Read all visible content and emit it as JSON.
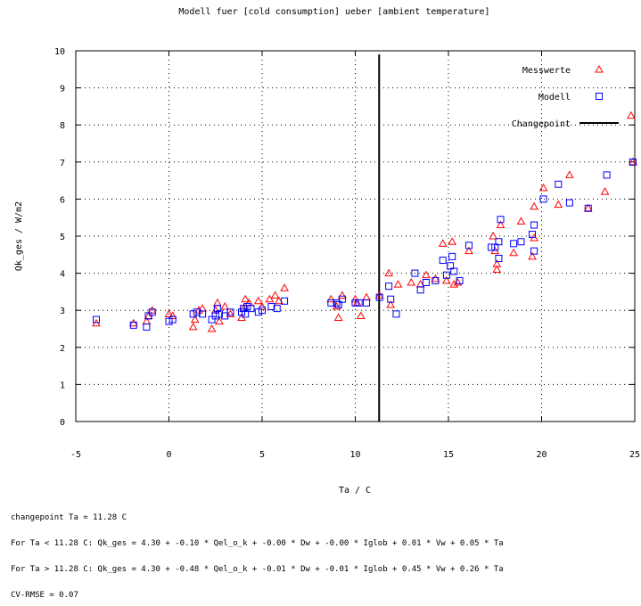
{
  "chart_data": {
    "type": "scatter",
    "title": "Modell fuer [cold consumption] ueber [ambient temperature]",
    "xlabel": "Ta / C",
    "ylabel": "Qk_ges / W/m2",
    "xlim": [
      -5,
      25
    ],
    "ylim": [
      0,
      10
    ],
    "x_ticks": [
      "-5",
      "0",
      "5",
      "10",
      "15",
      "20",
      "25"
    ],
    "y_ticks": [
      "0",
      "1",
      "2",
      "3",
      "4",
      "5",
      "6",
      "7",
      "8",
      "9",
      "10"
    ],
    "grid": true,
    "legend_position": "top-right",
    "colors": {
      "messwerte": "#ff0000",
      "modell": "#0000ff",
      "changepoint": "#000000",
      "grid": "#000000"
    },
    "changepoint_x": 11.28,
    "series": [
      {
        "name": "Messwerte",
        "marker": "triangle",
        "points": [
          [
            -3.9,
            2.65
          ],
          [
            -1.9,
            2.65
          ],
          [
            -1.2,
            2.7
          ],
          [
            -1.1,
            2.85
          ],
          [
            -0.9,
            3.0
          ],
          [
            0.0,
            2.9
          ],
          [
            0.2,
            2.85
          ],
          [
            1.3,
            2.55
          ],
          [
            1.4,
            2.75
          ],
          [
            1.6,
            3.0
          ],
          [
            1.8,
            3.05
          ],
          [
            2.3,
            2.5
          ],
          [
            2.5,
            3.0
          ],
          [
            2.6,
            3.2
          ],
          [
            2.7,
            2.7
          ],
          [
            3.0,
            3.1
          ],
          [
            3.3,
            2.9
          ],
          [
            3.9,
            2.8
          ],
          [
            4.0,
            3.05
          ],
          [
            4.1,
            3.3
          ],
          [
            4.3,
            3.2
          ],
          [
            4.8,
            3.25
          ],
          [
            5.0,
            3.1
          ],
          [
            5.4,
            3.3
          ],
          [
            5.7,
            3.4
          ],
          [
            5.9,
            3.25
          ],
          [
            6.2,
            3.6
          ],
          [
            8.7,
            3.3
          ],
          [
            9.0,
            3.1
          ],
          [
            9.1,
            2.8
          ],
          [
            9.3,
            3.4
          ],
          [
            10.0,
            3.3
          ],
          [
            10.1,
            3.2
          ],
          [
            10.3,
            2.85
          ],
          [
            10.6,
            3.35
          ],
          [
            11.3,
            3.4
          ],
          [
            11.8,
            4.0
          ],
          [
            11.9,
            3.15
          ],
          [
            12.3,
            3.7
          ],
          [
            13.0,
            3.75
          ],
          [
            13.5,
            3.7
          ],
          [
            13.8,
            3.95
          ],
          [
            14.3,
            3.85
          ],
          [
            14.7,
            4.8
          ],
          [
            14.9,
            3.8
          ],
          [
            15.2,
            4.85
          ],
          [
            15.3,
            3.7
          ],
          [
            15.5,
            3.75
          ],
          [
            16.1,
            4.6
          ],
          [
            17.4,
            5.0
          ],
          [
            17.5,
            4.6
          ],
          [
            17.6,
            4.1
          ],
          [
            17.6,
            4.25
          ],
          [
            17.8,
            5.3
          ],
          [
            18.5,
            4.55
          ],
          [
            18.9,
            5.4
          ],
          [
            19.5,
            4.45
          ],
          [
            19.6,
            4.95
          ],
          [
            19.6,
            5.8
          ],
          [
            20.1,
            6.3
          ],
          [
            20.9,
            5.85
          ],
          [
            21.5,
            6.65
          ],
          [
            22.5,
            5.75
          ],
          [
            23.4,
            6.2
          ],
          [
            24.8,
            8.25
          ],
          [
            24.9,
            7.0
          ]
        ]
      },
      {
        "name": "Modell",
        "marker": "square",
        "points": [
          [
            -3.9,
            2.75
          ],
          [
            -1.9,
            2.6
          ],
          [
            -1.2,
            2.55
          ],
          [
            -1.1,
            2.85
          ],
          [
            -0.9,
            2.95
          ],
          [
            0.0,
            2.7
          ],
          [
            0.2,
            2.75
          ],
          [
            1.3,
            2.9
          ],
          [
            1.5,
            2.95
          ],
          [
            1.8,
            2.9
          ],
          [
            2.3,
            2.75
          ],
          [
            2.5,
            2.85
          ],
          [
            2.6,
            3.05
          ],
          [
            2.7,
            2.9
          ],
          [
            3.0,
            2.85
          ],
          [
            3.3,
            2.95
          ],
          [
            3.9,
            2.95
          ],
          [
            4.0,
            3.05
          ],
          [
            4.1,
            2.9
          ],
          [
            4.2,
            3.1
          ],
          [
            4.4,
            3.05
          ],
          [
            4.8,
            2.95
          ],
          [
            5.0,
            3.0
          ],
          [
            5.5,
            3.1
          ],
          [
            5.8,
            3.05
          ],
          [
            6.2,
            3.25
          ],
          [
            8.7,
            3.2
          ],
          [
            9.0,
            3.2
          ],
          [
            9.1,
            3.15
          ],
          [
            9.3,
            3.3
          ],
          [
            10.0,
            3.2
          ],
          [
            10.2,
            3.2
          ],
          [
            10.6,
            3.2
          ],
          [
            11.3,
            3.35
          ],
          [
            11.8,
            3.65
          ],
          [
            11.9,
            3.3
          ],
          [
            12.2,
            2.9
          ],
          [
            13.2,
            4.0
          ],
          [
            13.5,
            3.55
          ],
          [
            13.8,
            3.75
          ],
          [
            14.3,
            3.8
          ],
          [
            14.7,
            4.35
          ],
          [
            14.9,
            3.95
          ],
          [
            15.1,
            4.2
          ],
          [
            15.2,
            4.45
          ],
          [
            15.3,
            4.05
          ],
          [
            15.6,
            3.8
          ],
          [
            16.1,
            4.75
          ],
          [
            17.3,
            4.7
          ],
          [
            17.5,
            4.7
          ],
          [
            17.7,
            4.4
          ],
          [
            17.7,
            4.85
          ],
          [
            17.8,
            5.45
          ],
          [
            18.5,
            4.8
          ],
          [
            18.9,
            4.85
          ],
          [
            19.5,
            5.05
          ],
          [
            19.6,
            5.3
          ],
          [
            19.6,
            4.6
          ],
          [
            20.1,
            6.0
          ],
          [
            20.9,
            6.4
          ],
          [
            21.5,
            5.9
          ],
          [
            22.5,
            5.75
          ],
          [
            23.5,
            6.65
          ],
          [
            24.9,
            7.0
          ]
        ]
      }
    ],
    "legend": [
      {
        "label": "Messwerte",
        "marker": "triangle"
      },
      {
        "label": "Modell",
        "marker": "square"
      },
      {
        "label": "Changepoint",
        "marker": "line"
      }
    ]
  },
  "notes": {
    "changepoint": "changepoint Ta = 11.28 C",
    "formula_low": "For Ta < 11.28 C: Qk_ges = 4.30 + -0.10 * Qel_o_k + -0.00 * Dw + -0.00 * Iglob + 0.01 * Vw + 0.05 * Ta",
    "formula_high": "For Ta > 11.28 C: Qk_ges = 4.30 + -0.48 * Qel_o_k + -0.01 * Dw + -0.01 * Iglob + 0.45 * Vw + 0.26 * Ta",
    "cvrmse": "CV-RMSE = 0.07"
  }
}
